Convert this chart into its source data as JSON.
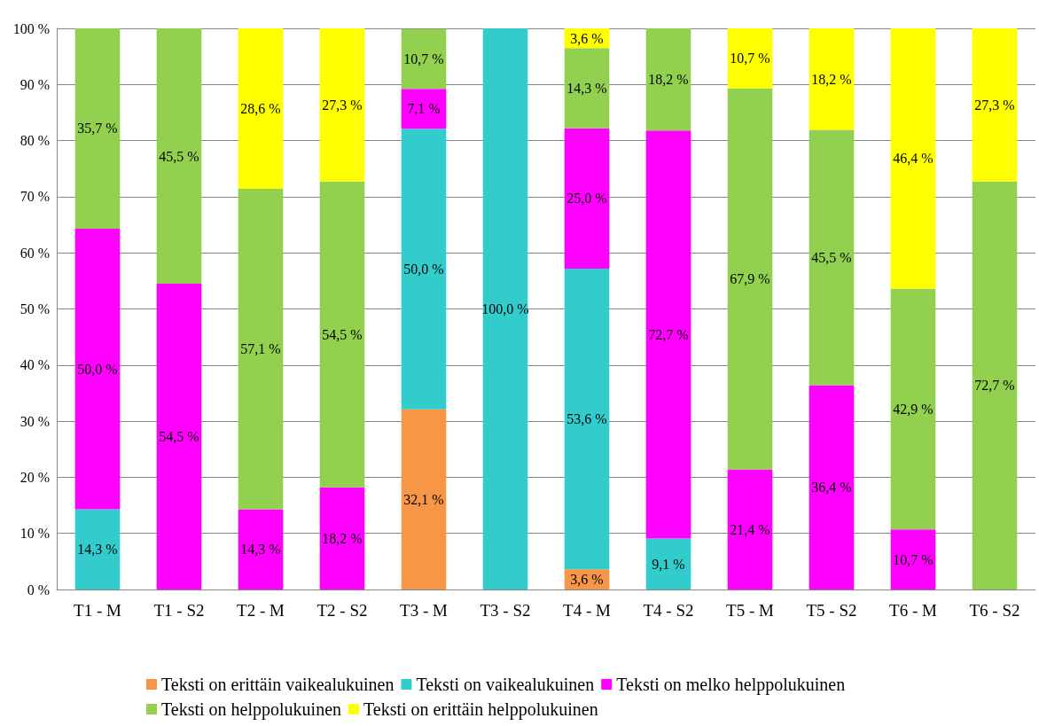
{
  "chart_data": {
    "type": "bar",
    "stacked": true,
    "grid": "y",
    "legend": "bottom",
    "categories": [
      "T1 - M",
      "T1 - S2",
      "T2 - M",
      "T2 - S2",
      "T3 - M",
      "T3 - S2",
      "T4 - M",
      "T4 - S2",
      "T5 - M",
      "T5 - S2",
      "T6 - M",
      "T6 - S2"
    ],
    "ylim": [
      0,
      100
    ],
    "yticks": [
      {
        "value": 0,
        "label": "0 %"
      },
      {
        "value": 10,
        "label": "10 %"
      },
      {
        "value": 20,
        "label": "20 %"
      },
      {
        "value": 30,
        "label": "30 %"
      },
      {
        "value": 40,
        "label": "40 %"
      },
      {
        "value": 50,
        "label": "50 %"
      },
      {
        "value": 60,
        "label": "60 %"
      },
      {
        "value": 70,
        "label": "70 %"
      },
      {
        "value": 80,
        "label": "80 %"
      },
      {
        "value": 90,
        "label": "90 %"
      },
      {
        "value": 100,
        "label": "100 %"
      }
    ],
    "series": [
      {
        "name": "Teksti on erittäin vaikealukuinen",
        "color": "#f79646",
        "values": [
          null,
          null,
          null,
          null,
          32.1,
          null,
          3.6,
          null,
          null,
          null,
          null,
          null
        ],
        "value_labels": [
          null,
          null,
          null,
          null,
          "32,1 %",
          null,
          "3,6 %",
          null,
          null,
          null,
          null,
          null
        ]
      },
      {
        "name": "Teksti on vaikealukuinen",
        "color": "#33cccc",
        "values": [
          14.3,
          null,
          null,
          null,
          50.0,
          100.0,
          53.6,
          9.1,
          null,
          null,
          null,
          null
        ],
        "value_labels": [
          "14,3 %",
          null,
          null,
          null,
          "50,0 %",
          "100,0 %",
          "53,6 %",
          "9,1 %",
          null,
          null,
          null,
          null
        ]
      },
      {
        "name": "Teksti on melko helppolukuinen",
        "color": "#ff00ff",
        "values": [
          50.0,
          54.5,
          14.3,
          18.2,
          7.1,
          null,
          25.0,
          72.7,
          21.4,
          36.4,
          10.7,
          null
        ],
        "value_labels": [
          "50,0 %",
          "54,5 %",
          "14,3 %",
          "18,2 %",
          "7,1 %",
          null,
          "25,0 %",
          "72,7 %",
          "21,4 %",
          "36,4 %",
          "10,7 %",
          null
        ]
      },
      {
        "name": "Teksti on helppolukuinen",
        "color": "#92d050",
        "values": [
          35.7,
          45.5,
          57.1,
          54.5,
          10.7,
          null,
          14.3,
          18.2,
          67.9,
          45.5,
          42.9,
          72.7
        ],
        "value_labels": [
          "35,7 %",
          "45,5 %",
          "57,1 %",
          "54,5 %",
          "10,7 %",
          null,
          "14,3 %",
          "18,2 %",
          "67,9 %",
          "45,5 %",
          "42,9 %",
          "72,7 %"
        ]
      },
      {
        "name": "Teksti on erittäin helppolukuinen",
        "color": "#ffff00",
        "values": [
          null,
          null,
          28.6,
          27.3,
          null,
          null,
          3.6,
          null,
          10.7,
          18.2,
          46.4,
          27.3
        ],
        "value_labels": [
          null,
          null,
          "28,6 %",
          "27,3 %",
          null,
          null,
          "3,6 %",
          null,
          "10,7 %",
          "18,2 %",
          "46,4 %",
          "27,3 %"
        ]
      }
    ]
  }
}
